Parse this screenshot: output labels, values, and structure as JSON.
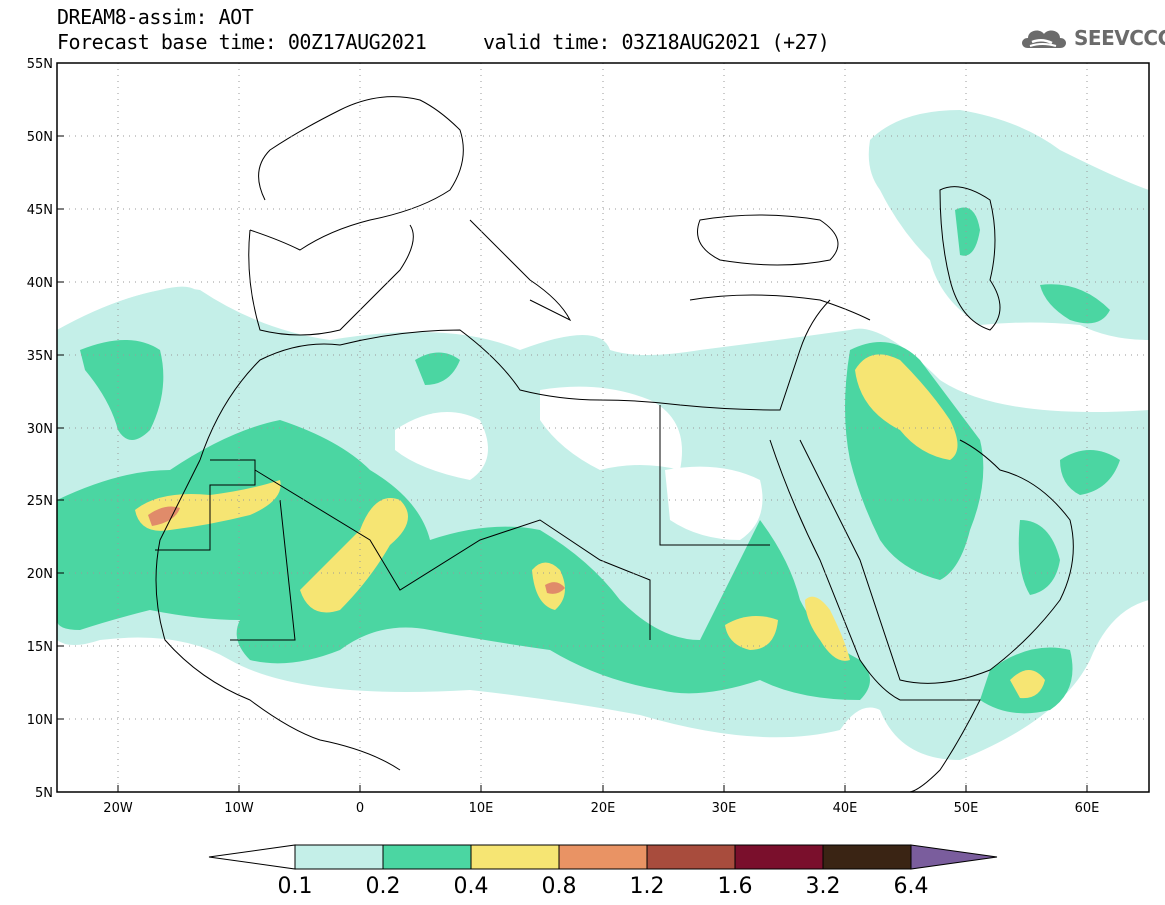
{
  "header": {
    "model_line": "DREAM8-assim: AOT",
    "base_time": "Forecast base time: 00Z17AUG2021",
    "valid_time": "valid time: 03Z18AUG2021 (+27)"
  },
  "logo": {
    "text": "SEEVCCC",
    "icon": "cloud-icon"
  },
  "map": {
    "projection": "latlon",
    "lon_range": [
      -25,
      65
    ],
    "lat_range": [
      5,
      55
    ],
    "lat_labels": [
      "55N",
      "50N",
      "45N",
      "40N",
      "35N",
      "30N",
      "25N",
      "20N",
      "15N",
      "10N",
      "5N"
    ],
    "lon_labels": [
      "20W",
      "10W",
      "0",
      "10E",
      "20E",
      "30E",
      "40E",
      "50E",
      "60E"
    ],
    "grid": "dotted"
  },
  "colorbar": {
    "labels": [
      "0.1",
      "0.2",
      "0.4",
      "0.8",
      "1.2",
      "1.6",
      "3.2",
      "6.4"
    ],
    "colors": [
      "#ffffff",
      "#c4efe8",
      "#4bd6a2",
      "#f6e573",
      "#e99364",
      "#a84c3d",
      "#7a0f2c",
      "#3a2414",
      "#7a5d9d"
    ]
  },
  "field_colors": {
    "low": "#c4efe8",
    "mid": "#4bd6a2",
    "high": "#f6e573",
    "very_high": "#e08b6a"
  }
}
